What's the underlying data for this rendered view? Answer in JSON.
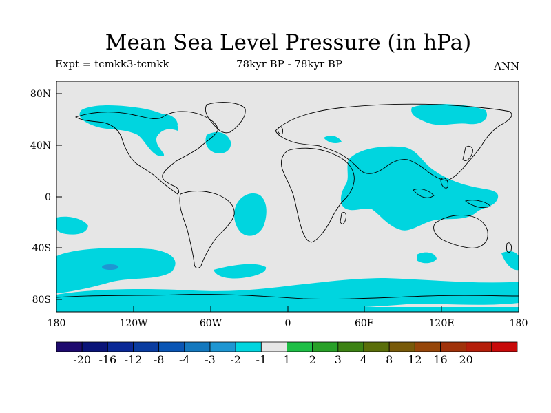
{
  "title": "Mean Sea Level Pressure (in hPa)",
  "experiment": "Expt = tcmkk3-tcmkk",
  "period": "78kyr BP - 78kyr BP",
  "season": "ANN",
  "colors": {
    "ocean_land_bg": "#e6e6e6",
    "anomaly_fill": "#00d5df",
    "coast": "#000000"
  },
  "map": {
    "lon_labels": [
      "180",
      "120W",
      "60W",
      "0",
      "60E",
      "120E",
      "180"
    ],
    "lat_labels": [
      "80N",
      "40N",
      "0",
      "40S",
      "80S"
    ]
  },
  "colorbar": {
    "colors": [
      "#1e0a6e",
      "#0a1478",
      "#0a2896",
      "#0a3ca0",
      "#0a55b4",
      "#1478be",
      "#1e96d2",
      "#00d5df",
      "#e6e6e6",
      "#1ebe46",
      "#28a028",
      "#3c8214",
      "#5a6e0a",
      "#785a0a",
      "#96460a",
      "#a0320a",
      "#b41e0a",
      "#c80a0a"
    ],
    "labels": [
      "-20",
      "-16",
      "-12",
      "-8",
      "-4",
      "-3",
      "-2",
      "-1",
      "1",
      "2",
      "3",
      "4",
      "8",
      "12",
      "16",
      "20"
    ]
  }
}
